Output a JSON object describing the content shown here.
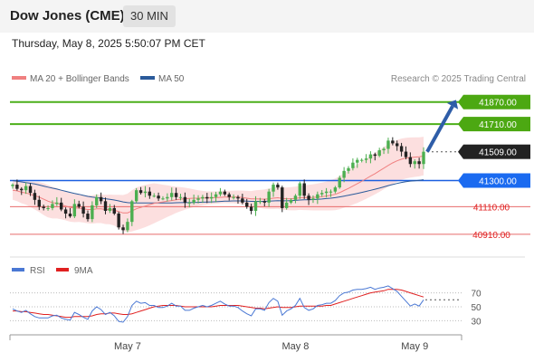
{
  "header": {
    "symbol": "Dow Jones (CME)",
    "interval": "30 MIN"
  },
  "timestamp": "Thursday, May 8, 2025 5:50:07 PM CET",
  "colors": {
    "up": "#4caf50",
    "down": "#222222",
    "resistance": "#4caf1a",
    "support": "#e86c6c",
    "pivot": "#1a5fe0",
    "ma20": "#f08080",
    "ma50": "#2a5a9a",
    "bollinger_fill": "#fbd4d4",
    "rsi": "#4a78d4",
    "rsi_ma": "#e02020",
    "arrow": "#2e5da8"
  },
  "chart_data": [
    {
      "type": "candlestick",
      "legend": [
        {
          "name": "MA 20 + Bollinger Bands",
          "color": "#f08080"
        },
        {
          "name": "MA 50",
          "color": "#2a5a9a"
        }
      ],
      "watermark": "Research © 2025 Trading Central",
      "ylim": [
        40850,
        41980
      ],
      "x_ticks": [
        {
          "index": 26,
          "label": "May 7"
        },
        {
          "index": 64,
          "label": "May 8"
        },
        {
          "index": 91,
          "label": "May 9"
        }
      ],
      "levels": [
        {
          "value": 41870,
          "label": "41870.00",
          "kind": "resistance"
        },
        {
          "value": 41710,
          "label": "41710.00",
          "kind": "resistance"
        },
        {
          "value": 41509,
          "label": "41509.00",
          "kind": "last"
        },
        {
          "value": 41300,
          "label": "41300.00",
          "kind": "pivot"
        },
        {
          "value": 41110,
          "label": "41110.00",
          "kind": "support"
        },
        {
          "value": 40910,
          "label": "40910.00",
          "kind": "support"
        }
      ],
      "close": [
        41270,
        41240,
        41230,
        41260,
        41210,
        41160,
        41110,
        41100,
        41100,
        41130,
        41140,
        41090,
        41060,
        41040,
        41130,
        41110,
        41060,
        41020,
        41120,
        41180,
        41150,
        41080,
        41100,
        41060,
        40960,
        40940,
        41000,
        41150,
        41230,
        41210,
        41220,
        41190,
        41190,
        41170,
        41170,
        41180,
        41210,
        41180,
        41180,
        41140,
        41140,
        41160,
        41170,
        41180,
        41170,
        41180,
        41200,
        41220,
        41200,
        41180,
        41180,
        41170,
        41140,
        41110,
        41080,
        41150,
        41150,
        41140,
        41220,
        41270,
        41250,
        41100,
        41140,
        41160,
        41190,
        41280,
        41190,
        41160,
        41170,
        41200,
        41210,
        41220,
        41220,
        41250,
        41320,
        41370,
        41390,
        41430,
        41450,
        41450,
        41460,
        41490,
        41480,
        41520,
        41530,
        41590,
        41570,
        41550,
        41510,
        41470,
        41420,
        41440,
        41420,
        41509
      ],
      "ma20": [
        41230,
        41225,
        41215,
        41210,
        41200,
        41190,
        41180,
        41165,
        41150,
        41140,
        41135,
        41125,
        41115,
        41105,
        41100,
        41100,
        41095,
        41090,
        41090,
        41095,
        41095,
        41090,
        41090,
        41085,
        41075,
        41065,
        41065,
        41080,
        41095,
        41105,
        41115,
        41125,
        41135,
        41140,
        41145,
        41150,
        41155,
        41160,
        41165,
        41168,
        41170,
        41172,
        41172,
        41173,
        41174,
        41175,
        41176,
        41178,
        41180,
        41180,
        41181,
        41180,
        41177,
        41172,
        41167,
        41167,
        41166,
        41165,
        41168,
        41172,
        41175,
        41170,
        41168,
        41168,
        41170,
        41175,
        41176,
        41177,
        41178,
        41181,
        41184,
        41188,
        41193,
        41200,
        41212,
        41228,
        41243,
        41260,
        41278,
        41295,
        41313,
        41332,
        41350,
        41370,
        41390,
        41410,
        41428,
        41443,
        41455,
        41463,
        41467,
        41470,
        41472,
        41478
      ],
      "ma50": [
        41300,
        41295,
        41290,
        41285,
        41280,
        41275,
        41268,
        41260,
        41252,
        41245,
        41238,
        41230,
        41222,
        41214,
        41207,
        41200,
        41192,
        41185,
        41180,
        41176,
        41172,
        41168,
        41164,
        41159,
        41152,
        41145,
        41140,
        41138,
        41138,
        41138,
        41138,
        41138,
        41138,
        41137,
        41137,
        41137,
        41138,
        41139,
        41140,
        41140,
        41140,
        41141,
        41142,
        41143,
        41144,
        41145,
        41146,
        41148,
        41150,
        41151,
        41152,
        41152,
        41152,
        41151,
        41149,
        41149,
        41149,
        41149,
        41150,
        41152,
        41154,
        41153,
        41153,
        41154,
        41156,
        41159,
        41160,
        41161,
        41162,
        41164,
        41166,
        41169,
        41172,
        41176,
        41181,
        41187,
        41193,
        41200,
        41207,
        41214,
        41221,
        41229,
        41237,
        41245,
        41254,
        41263,
        41271,
        41279,
        41286,
        41292,
        41296,
        41299,
        41302,
        41306
      ],
      "bb_width": [
        70,
        75,
        80,
        85,
        92,
        100,
        108,
        115,
        118,
        115,
        110,
        106,
        104,
        104,
        102,
        100,
        100,
        101,
        103,
        104,
        104,
        106,
        108,
        112,
        122,
        130,
        140,
        150,
        155,
        155,
        153,
        150,
        145,
        135,
        125,
        115,
        105,
        95,
        88,
        80,
        72,
        64,
        58,
        52,
        48,
        46,
        45,
        44,
        44,
        45,
        46,
        48,
        50,
        53,
        57,
        62,
        66,
        70,
        75,
        79,
        80,
        81,
        82,
        84,
        86,
        88,
        90,
        92,
        95,
        98,
        101,
        105,
        110,
        115,
        120,
        125,
        130,
        135,
        140,
        143,
        146,
        148,
        150,
        152,
        153,
        154,
        153,
        152,
        150,
        148,
        146,
        144,
        142,
        140
      ]
    },
    {
      "type": "line",
      "legend": [
        {
          "name": "RSI",
          "color": "#4a78d4"
        },
        {
          "name": "9MA",
          "color": "#e02020"
        }
      ],
      "y_ticks": [
        70,
        50,
        30
      ],
      "ylim": [
        15,
        85
      ],
      "rsi": [
        47,
        44,
        42,
        45,
        40,
        36,
        34,
        34,
        34,
        37,
        38,
        34,
        32,
        31,
        42,
        39,
        35,
        32,
        44,
        50,
        46,
        39,
        42,
        37,
        29,
        28,
        36,
        52,
        58,
        55,
        56,
        52,
        52,
        49,
        49,
        51,
        55,
        51,
        51,
        45,
        45,
        48,
        50,
        52,
        50,
        52,
        55,
        58,
        54,
        51,
        51,
        49,
        44,
        40,
        37,
        47,
        47,
        45,
        56,
        62,
        58,
        38,
        44,
        47,
        52,
        62,
        49,
        45,
        47,
        52,
        53,
        55,
        55,
        59,
        66,
        70,
        71,
        74,
        75,
        75,
        76,
        78,
        75,
        77,
        78,
        80,
        76,
        72,
        65,
        58,
        51,
        54,
        51,
        60
      ],
      "ma9": [
        44,
        44,
        43,
        43,
        42,
        41,
        40,
        39,
        39,
        38,
        37,
        36,
        35,
        35,
        36,
        36,
        36,
        36,
        37,
        39,
        40,
        40,
        41,
        41,
        40,
        39,
        39,
        40,
        42,
        44,
        46,
        48,
        50,
        51,
        52,
        52,
        52,
        52,
        51,
        50,
        50,
        50,
        50,
        50,
        50,
        50,
        51,
        52,
        52,
        52,
        52,
        52,
        51,
        50,
        49,
        48,
        48,
        47,
        48,
        49,
        50,
        49,
        49,
        49,
        50,
        51,
        51,
        51,
        51,
        51,
        51,
        52,
        52,
        54,
        56,
        58,
        60,
        62,
        64,
        66,
        68,
        70,
        71,
        72,
        73,
        75,
        75,
        75,
        74,
        72,
        70,
        68,
        66,
        64
      ]
    }
  ]
}
